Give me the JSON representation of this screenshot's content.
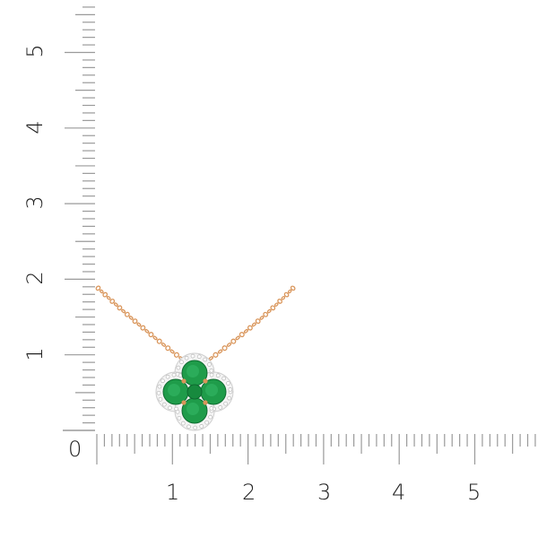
{
  "ruler": {
    "x_labels": [
      "0",
      "1",
      "2",
      "3",
      "4",
      "5"
    ],
    "y_labels": [
      "1",
      "2",
      "3",
      "4",
      "5"
    ],
    "tick_color": "#9a9a9a",
    "minor_divisions_per_unit": 10
  },
  "product": {
    "type": "necklace pendant",
    "metal_color": "#d9955a",
    "gem_color": "#1f9c4a",
    "halo_color": "#e8e8e8"
  }
}
